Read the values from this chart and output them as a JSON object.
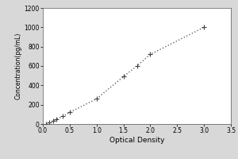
{
  "x_data": [
    0.062,
    0.125,
    0.188,
    0.25,
    0.375,
    0.5,
    1.0,
    1.5,
    1.75,
    2.0,
    3.0
  ],
  "y_data": [
    0,
    15,
    30,
    50,
    80,
    120,
    260,
    490,
    600,
    720,
    1000
  ],
  "xlabel": "Optical Density",
  "ylabel": "Concentration(pg/mL)",
  "xlim": [
    0,
    3.5
  ],
  "ylim": [
    0,
    1200
  ],
  "xticks": [
    0,
    0.5,
    1.0,
    1.5,
    2.0,
    2.5,
    3.0,
    3.5
  ],
  "yticks": [
    0,
    200,
    400,
    600,
    800,
    1000,
    1200
  ],
  "line_color": "#444444",
  "marker": "+",
  "marker_size": 4,
  "linestyle": "dotted",
  "background_color": "#d8d8d8",
  "plot_bg_color": "#ffffff",
  "border_color": "#aaaaaa"
}
